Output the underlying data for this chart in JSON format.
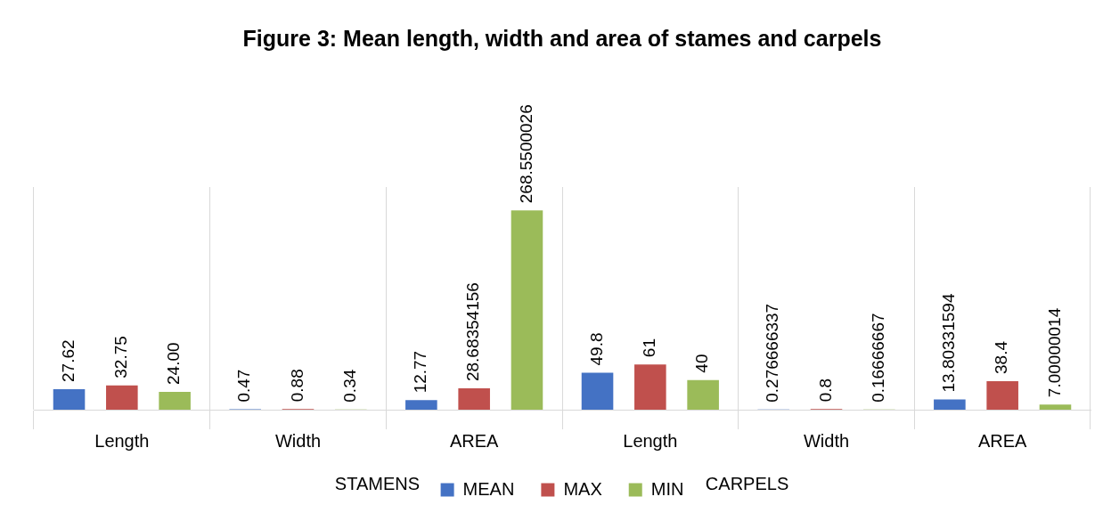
{
  "chart_data": {
    "type": "bar",
    "title": "Figure 3: Mean length, width and area of stames and carpels",
    "categories": [
      "Length",
      "Width",
      "AREA",
      "Length",
      "Width",
      "AREA"
    ],
    "series": [
      {
        "name": "MEAN",
        "color": "#4472c4",
        "values": [
          27.62,
          0.47,
          12.77,
          49.8,
          0.276666337,
          13.80331594
        ],
        "value_labels": [
          "27.62",
          "0.47",
          "12.77",
          "49.8",
          "0.276666337",
          "13.80331594"
        ]
      },
      {
        "name": "MAX",
        "color": "#c0504d",
        "values": [
          32.75,
          0.88,
          28.68354156,
          61,
          0.8,
          38.4
        ],
        "value_labels": [
          "32.75",
          "0.88",
          "28.68354156",
          "61",
          "0.8",
          "38.4"
        ]
      },
      {
        "name": "MIN",
        "color": "#9bbb59",
        "values": [
          24,
          0.34,
          268.5500026,
          40,
          0.16666667,
          7.00000014
        ],
        "value_labels": [
          "24.00",
          "0.34",
          "268.5500026",
          "40",
          "0.16666667",
          "7.00000014"
        ]
      }
    ],
    "annotations": [
      "STAMENS",
      "CARPELS"
    ],
    "grid": "x",
    "legend": "bottom"
  }
}
